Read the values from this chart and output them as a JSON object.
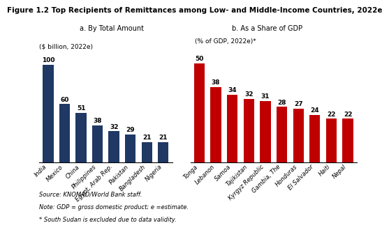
{
  "title": "Figure 1.2 Top Recipients of Remittances among Low- and Middle-Income Countries, 2022e",
  "subtitle_a": "a. By Total Amount",
  "subtitle_b": "b. As a Share of GDP",
  "left_ylabel": "($ billion, 2022e)",
  "right_ylabel": "(% of GDP, 2022e)*",
  "left_categories": [
    "India",
    "Mexico",
    "China",
    "Philippines",
    "Egypt, Arab Rep.",
    "Pakistan",
    "Bangladesh",
    "Nigeria"
  ],
  "left_values": [
    100,
    60,
    51,
    38,
    32,
    29,
    21,
    21
  ],
  "left_color": "#1F3864",
  "right_categories": [
    "Tonga",
    "Lebanon",
    "Samoa",
    "Tajikistan",
    "Kyrgyz Republic",
    "Gambia, The",
    "Honduras",
    "El Salvador",
    "Haiti",
    "Nepal"
  ],
  "right_values": [
    50,
    38,
    34,
    32,
    31,
    28,
    27,
    24,
    22,
    22
  ],
  "right_color": "#C00000",
  "source_text": "Source: KNOMAD/World Bank staff.",
  "note_text": "Note: GDP = gross domestic product; e =estimate.",
  "asterisk_text": "* South Sudan is excluded due to data validity.",
  "value_fontsize": 6.5,
  "tick_fontsize": 6,
  "title_fontsize": 7.5,
  "subtitle_fontsize": 7,
  "ylabel_fontsize": 6.5,
  "footer_fontsize": 6
}
